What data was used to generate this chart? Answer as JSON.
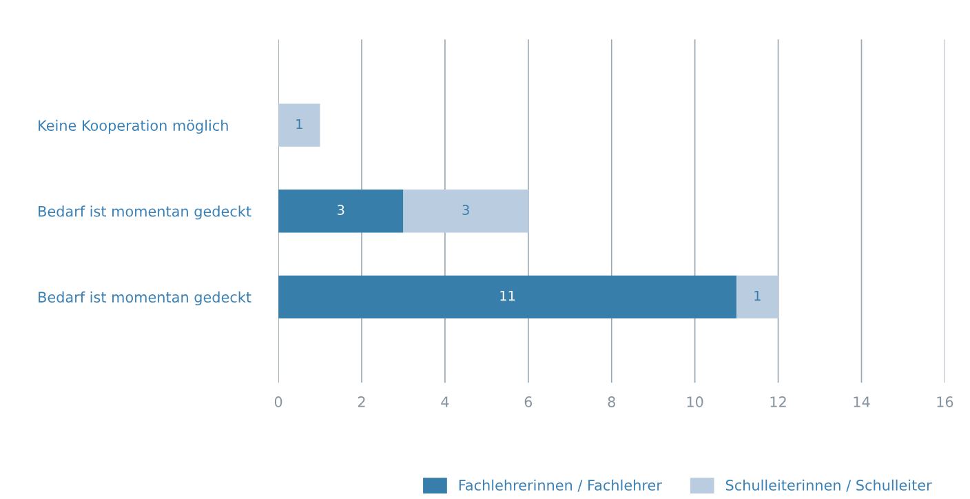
{
  "chart_data": {
    "type": "bar",
    "orientation": "horizontal",
    "stacked": true,
    "categories": [
      "Keine Kooperation möglich",
      "Bedarf ist momentan gedeckt",
      "Bedarf ist momentan gedeckt"
    ],
    "series": [
      {
        "name": "Fachlehrerinnen / Fachlehrer",
        "color": "#377eab",
        "values": [
          null,
          3,
          11
        ]
      },
      {
        "name": "Schulleiterinnen / Schulleiter",
        "color": "#b9cce0",
        "values": [
          1,
          3,
          1
        ]
      }
    ],
    "xlim": [
      0,
      16
    ],
    "xticks": [
      0,
      2,
      4,
      6,
      8,
      10,
      12,
      14,
      16
    ],
    "grid": "x",
    "legend": "bottom right",
    "data_labels": true
  }
}
